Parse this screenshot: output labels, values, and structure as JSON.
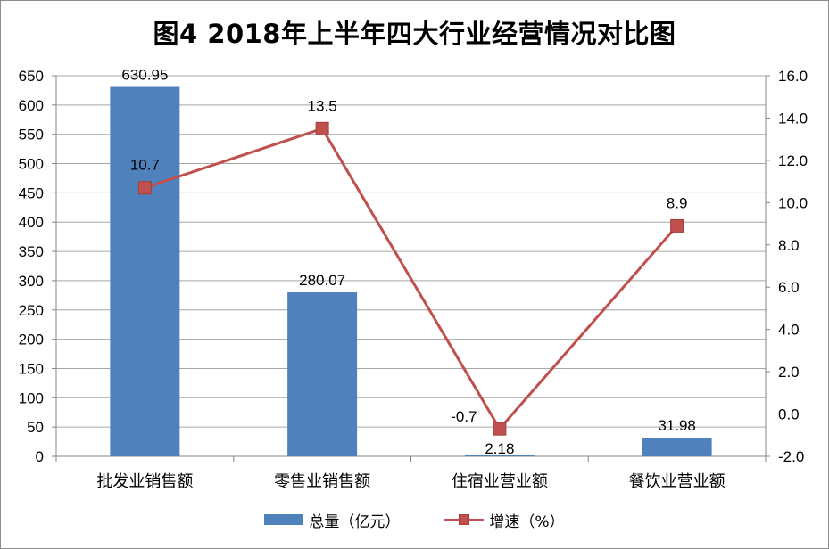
{
  "chart_data": {
    "type": "bar+line",
    "title": "图4 2018年上半年四大行业经营情况对比图",
    "categories": [
      "批发业销售额",
      "零售业销售额",
      "住宿业营业额",
      "餐饮业营业额"
    ],
    "series": [
      {
        "name": "总量（亿元）",
        "type": "bar",
        "axis": "left",
        "values": [
          630.95,
          280.07,
          2.18,
          31.98
        ],
        "labels": [
          "630.95",
          "280.07",
          "2.18",
          "31.98"
        ],
        "color": "#4f81bd"
      },
      {
        "name": "增速（%）",
        "type": "line",
        "axis": "right",
        "values": [
          10.7,
          13.5,
          -0.7,
          8.9
        ],
        "labels": [
          "10.7",
          "13.5",
          "-0.7",
          "8.9"
        ],
        "color": "#c0504d"
      }
    ],
    "y_left": {
      "min": 0,
      "max": 650,
      "step": 50,
      "ticks": [
        "0",
        "50",
        "100",
        "150",
        "200",
        "250",
        "300",
        "350",
        "400",
        "450",
        "500",
        "550",
        "600",
        "650"
      ]
    },
    "y_right": {
      "min": -2,
      "max": 16,
      "step": 2,
      "ticks": [
        "-2.0",
        "0.0",
        "2.0",
        "4.0",
        "6.0",
        "8.0",
        "10.0",
        "12.0",
        "14.0",
        "16.0"
      ]
    },
    "grid": true,
    "legend_position": "bottom"
  }
}
